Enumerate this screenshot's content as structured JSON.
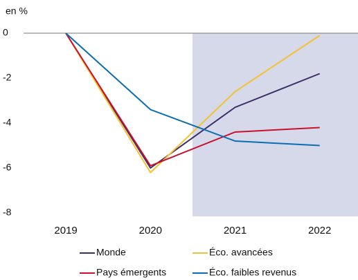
{
  "chart_data": {
    "type": "line",
    "y_label": "en %",
    "categories": [
      "2019",
      "2020",
      "2021",
      "2022"
    ],
    "series": [
      {
        "name": "Monde",
        "color": "#3b2f6b",
        "values": [
          0,
          -6.0,
          -3.3,
          -1.8
        ]
      },
      {
        "name": "Éco. avancées",
        "color": "#f2c230",
        "values": [
          0,
          -6.2,
          -2.6,
          -0.1
        ]
      },
      {
        "name": "Pays émergents",
        "color": "#c8102e",
        "values": [
          0,
          -5.9,
          -4.4,
          -4.2
        ]
      },
      {
        "name": "Éco. faibles revenus",
        "color": "#0a6db3",
        "values": [
          0,
          -3.4,
          -4.8,
          -5.0
        ]
      }
    ],
    "ylim": [
      -8,
      0
    ],
    "yticks": [
      0,
      -2,
      -4,
      -6,
      -8
    ],
    "grid": false
  }
}
